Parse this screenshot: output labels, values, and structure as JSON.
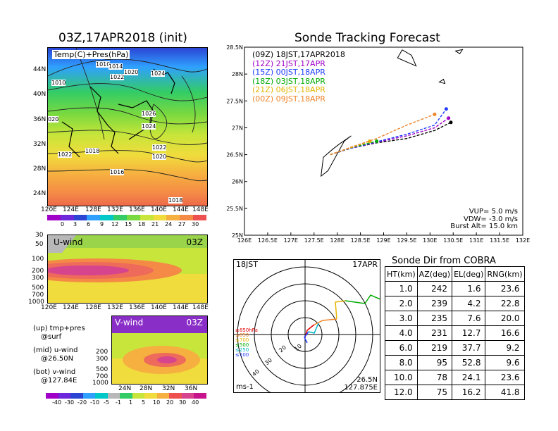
{
  "left_title": "03Z,17APR2018 (init)",
  "right_title": "Sonde Tracking Forecast",
  "map_panel": {
    "label": "Temp(C)+Pres(hPa)",
    "lat_ticks": [
      "44N",
      "40N",
      "36N",
      "32N",
      "28N",
      "24N"
    ],
    "lon_ticks": [
      "120E",
      "124E",
      "128E",
      "132E",
      "136E",
      "140E",
      "144E",
      "148E"
    ],
    "isobars": [
      "1010",
      "1014",
      "1022",
      "1020",
      "1024",
      "1010",
      "1026",
      "1024",
      "020",
      "1018",
      "1022",
      "1022",
      "1020",
      "1016",
      "1018"
    ],
    "colorbar": [
      "0",
      "3",
      "6",
      "9",
      "12",
      "15",
      "18",
      "21",
      "24",
      "27",
      "30"
    ]
  },
  "uwind_panel": {
    "label": "U-wind",
    "time": "03Z",
    "y_ticks": [
      "30",
      "50",
      "100",
      "200",
      "300",
      "500",
      "700",
      "1000"
    ],
    "x_ticks": [
      "120E",
      "124E",
      "128E",
      "132E",
      "136E",
      "140E",
      "144E",
      "148E"
    ]
  },
  "vwind_panel": {
    "label": "V-wind",
    "time": "03Z",
    "y_ticks": [
      "200",
      "300",
      "500",
      "700",
      "1000"
    ],
    "x_ticks": [
      "24N",
      "28N",
      "32N",
      "36N"
    ]
  },
  "panel_notes": [
    "(up) tmp+pres",
    "@surf",
    "(mid) u-wind",
    "@26.50N",
    "(bot) v-wind",
    "@127.84E"
  ],
  "wind_colorbar": [
    "-40",
    "-30",
    "-20",
    "-10",
    "-5",
    "-1",
    "1",
    "5",
    "10",
    "20",
    "30",
    "40"
  ],
  "track_legend": [
    {
      "code": "(09Z)",
      "time": "18JST,17APR2018",
      "color": "#000000"
    },
    {
      "code": "(12Z)",
      "time": "21JST,17APR",
      "color": "#a000c8"
    },
    {
      "code": "(15Z)",
      "time": "00JST,18APR",
      "color": "#1e3cff"
    },
    {
      "code": "(18Z)",
      "time": "03JST,18APR",
      "color": "#00aa00"
    },
    {
      "code": "(21Z)",
      "time": "06JST,18APR",
      "color": "#e6b400"
    },
    {
      "code": "(00Z)",
      "time": "09JST,18APR",
      "color": "#f08228"
    }
  ],
  "track_params": [
    "VUP= 5.0 m/s",
    "VDW= -3.0 m/s",
    "Burst Alt= 15.0 km"
  ],
  "hodo": {
    "top_left": "18JST",
    "top_right": "17APR",
    "ring_labels": [
      "10",
      "20",
      "30",
      "40"
    ],
    "unit": "ms-1",
    "lat": "26.5N",
    "lon": "127.875E",
    "levels": [
      {
        "text": "≥850hPa",
        "color": "#e00000"
      },
      {
        "text": "≤850",
        "color": "#f08228"
      },
      {
        "text": "≤700",
        "color": "#e6b400"
      },
      {
        "text": "≤500",
        "color": "#00aa00"
      },
      {
        "text": "≤250",
        "color": "#00b4c8"
      },
      {
        "text": "≤100",
        "color": "#1e3cff"
      }
    ]
  },
  "chart_data": {
    "type": "line",
    "title": "Sonde Tracking Forecast",
    "xlabel": "",
    "ylabel": "",
    "xlim": [
      126,
      132
    ],
    "ylim": [
      25,
      28.5
    ],
    "x_ticks": [
      "126E",
      "126.5E",
      "127E",
      "127.5E",
      "128E",
      "128.5E",
      "129E",
      "129.5E",
      "130E",
      "130.5E",
      "131E",
      "131.5E",
      "132E"
    ],
    "y_ticks": [
      "25N",
      "25.5N",
      "26N",
      "26.5N",
      "27N",
      "27.5N",
      "28N",
      "28.5N"
    ],
    "grid": false,
    "series": [
      {
        "name": "(09Z) 18JST,17APR2018",
        "color": "#000000",
        "x": [
          127.85,
          128.3,
          128.85,
          129.5,
          130.1,
          130.45
        ],
        "y": [
          26.5,
          26.62,
          26.72,
          26.8,
          26.95,
          27.1
        ]
      },
      {
        "name": "(12Z) 21JST,17APR",
        "color": "#a000c8",
        "x": [
          127.85,
          128.3,
          128.85,
          129.5,
          130.1,
          130.4
        ],
        "y": [
          26.5,
          26.62,
          26.73,
          26.85,
          27.0,
          27.18
        ]
      },
      {
        "name": "(15Z) 00JST,18APR",
        "color": "#1e3cff",
        "x": [
          127.85,
          128.3,
          128.85,
          129.5,
          130.1,
          130.35
        ],
        "y": [
          26.5,
          26.62,
          26.74,
          26.88,
          27.05,
          27.35
        ]
      },
      {
        "name": "(18Z) 03JST,18APR",
        "color": "#00aa00",
        "x": [
          127.85,
          128.3,
          128.85
        ],
        "y": [
          26.5,
          26.63,
          26.75
        ]
      },
      {
        "name": "(21Z) 06JST,18APR",
        "color": "#e6b400",
        "x": [
          127.85,
          128.3,
          128.7
        ],
        "y": [
          26.5,
          26.63,
          26.75
        ]
      },
      {
        "name": "(00Z) 09JST,18APR",
        "color": "#f08228",
        "x": [
          127.85,
          128.3,
          128.85,
          129.5,
          130.1
        ],
        "y": [
          26.5,
          26.64,
          26.8,
          27.05,
          27.25
        ]
      }
    ]
  },
  "sonde_table": {
    "title": "Sonde Dir from COBRA",
    "headers": [
      "HT(km)",
      "AZ(deg)",
      "EL(deg)",
      "RNG(km)"
    ],
    "rows": [
      [
        "1.0",
        "242",
        "1.6",
        "23.6"
      ],
      [
        "2.0",
        "239",
        "4.2",
        "22.8"
      ],
      [
        "3.0",
        "235",
        "7.6",
        "20.0"
      ],
      [
        "4.0",
        "231",
        "12.7",
        "16.6"
      ],
      [
        "6.0",
        "219",
        "37.7",
        "9.2"
      ],
      [
        "8.0",
        "95",
        "52.8",
        "9.6"
      ],
      [
        "10.0",
        "78",
        "24.1",
        "23.6"
      ],
      [
        "12.0",
        "75",
        "16.2",
        "41.8"
      ]
    ]
  }
}
